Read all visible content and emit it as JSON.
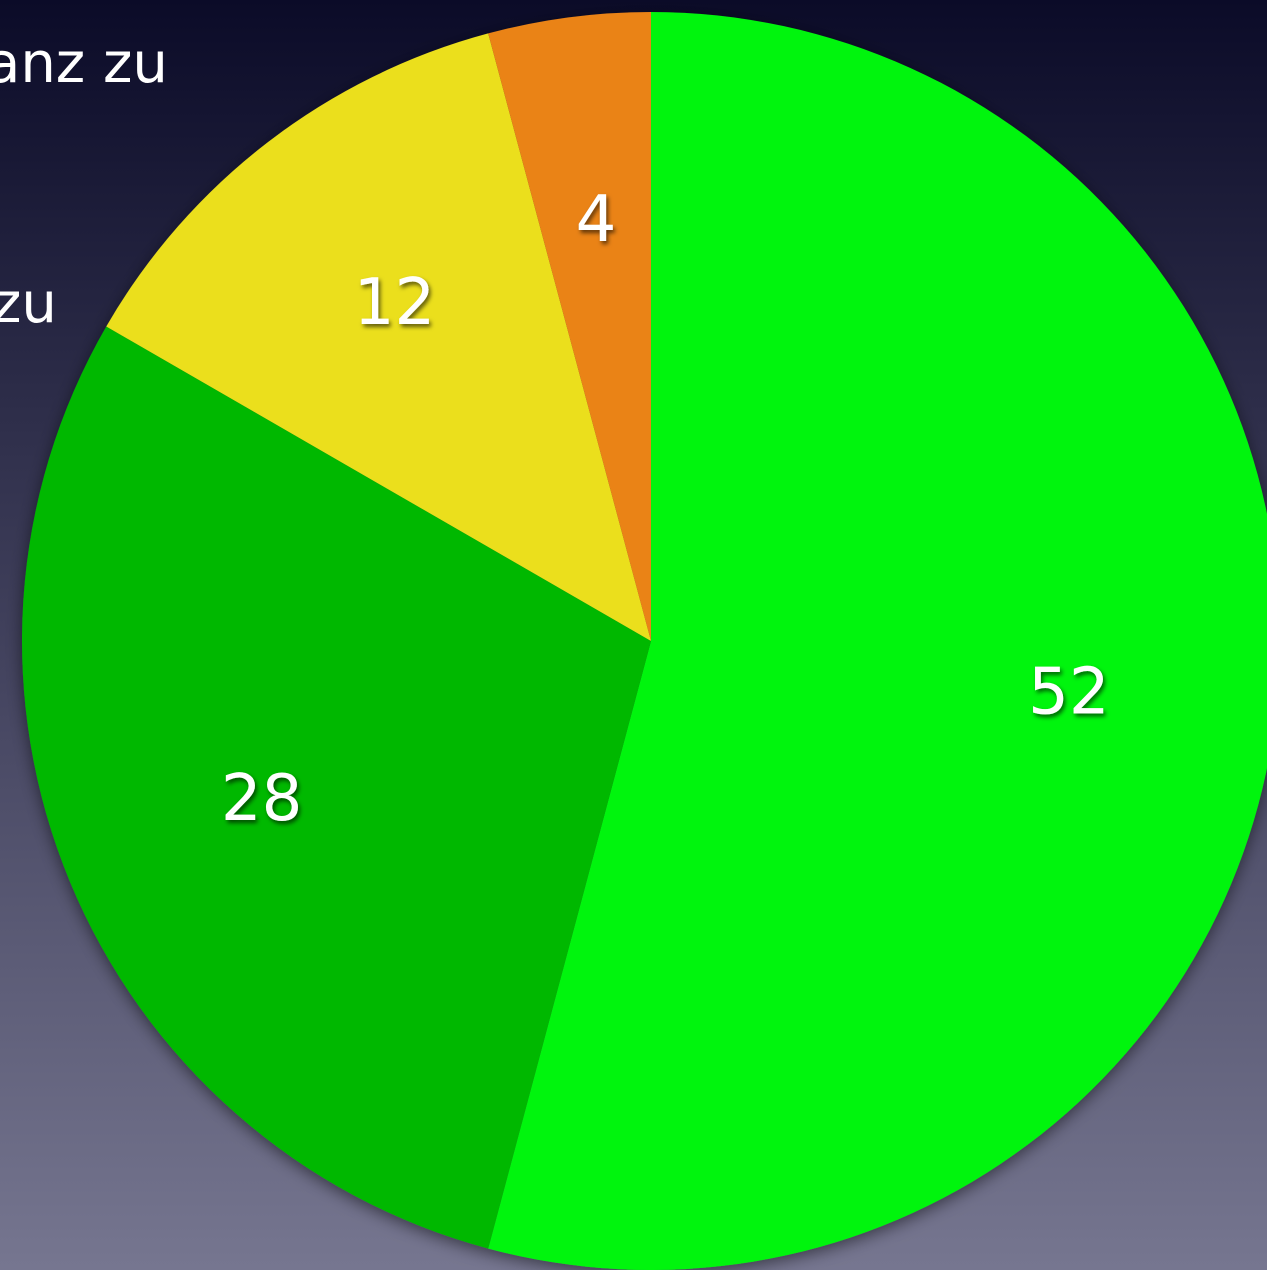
{
  "chart_data": {
    "type": "pie",
    "categories": [
      "anz zu",
      "zu",
      null,
      null
    ],
    "values": [
      52,
      28,
      12,
      4
    ],
    "colors": [
      "#00f50d",
      "#00b800",
      "#ebdf1e",
      "#ea8316"
    ]
  }
}
